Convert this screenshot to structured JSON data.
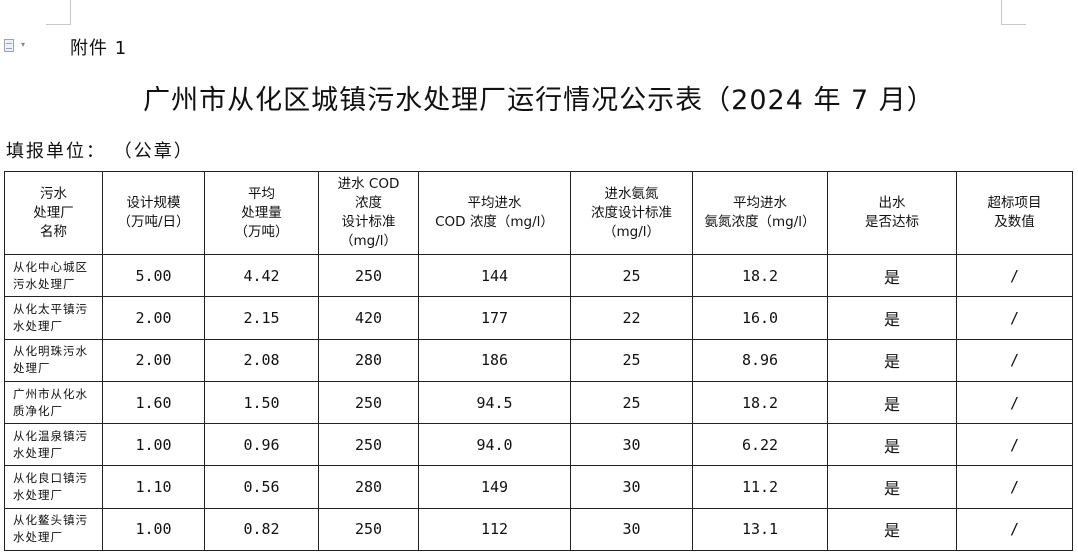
{
  "header": {
    "attachment_label": "附件 1",
    "title": "广州市从化区城镇污水处理厂运行情况公示表（2024 年 7 月）",
    "reporter_label": "填报单位： （公章）"
  },
  "icons": {
    "doc_icon": "document-icon",
    "doc_caret": "chevron-down-icon",
    "caret_glyph": "▾"
  },
  "table": {
    "columns": [
      "污水\n处理厂\n名称",
      "设计规模\n（万吨/日）",
      "平均\n处理量\n（万吨）",
      "进水 COD\n浓度\n设计标准\n（mg/l）",
      "平均进水\nCOD 浓度（mg/l）",
      "进水氨氮\n浓度设计标准\n（mg/l）",
      "平均进水\n氨氮浓度（mg/l）",
      "出水\n是否达标",
      "超标项目\n及数值"
    ],
    "rows": [
      {
        "name": "从化中心城区污水处理厂",
        "capacity": "5.00",
        "avg_volume": "4.42",
        "cod_std": "250",
        "cod_avg": "144",
        "nh_std": "25",
        "nh_avg": "18.2",
        "compliant": "是",
        "exceed": "/"
      },
      {
        "name": "从化太平镇污水处理厂",
        "capacity": "2.00",
        "avg_volume": "2.15",
        "cod_std": "420",
        "cod_avg": "177",
        "nh_std": "22",
        "nh_avg": "16.0",
        "compliant": "是",
        "exceed": "/"
      },
      {
        "name": "从化明珠污水处理厂",
        "capacity": "2.00",
        "avg_volume": "2.08",
        "cod_std": "280",
        "cod_avg": "186",
        "nh_std": "25",
        "nh_avg": "8.96",
        "compliant": "是",
        "exceed": "/"
      },
      {
        "name": "广州市从化水质净化厂",
        "capacity": "1.60",
        "avg_volume": "1.50",
        "cod_std": "250",
        "cod_avg": "94.5",
        "nh_std": "25",
        "nh_avg": "18.2",
        "compliant": "是",
        "exceed": "/"
      },
      {
        "name": "从化温泉镇污水处理厂",
        "capacity": "1.00",
        "avg_volume": "0.96",
        "cod_std": "250",
        "cod_avg": "94.0",
        "nh_std": "30",
        "nh_avg": "6.22",
        "compliant": "是",
        "exceed": "/"
      },
      {
        "name": "从化良口镇污水处理厂",
        "capacity": "1.10",
        "avg_volume": "0.56",
        "cod_std": "280",
        "cod_avg": "149",
        "nh_std": "30",
        "nh_avg": "11.2",
        "compliant": "是",
        "exceed": "/"
      },
      {
        "name": "从化鳌头镇污水处理厂",
        "capacity": "1.00",
        "avg_volume": "0.82",
        "cod_std": "250",
        "cod_avg": "112",
        "nh_std": "30",
        "nh_avg": "13.1",
        "compliant": "是",
        "exceed": "/"
      }
    ]
  }
}
